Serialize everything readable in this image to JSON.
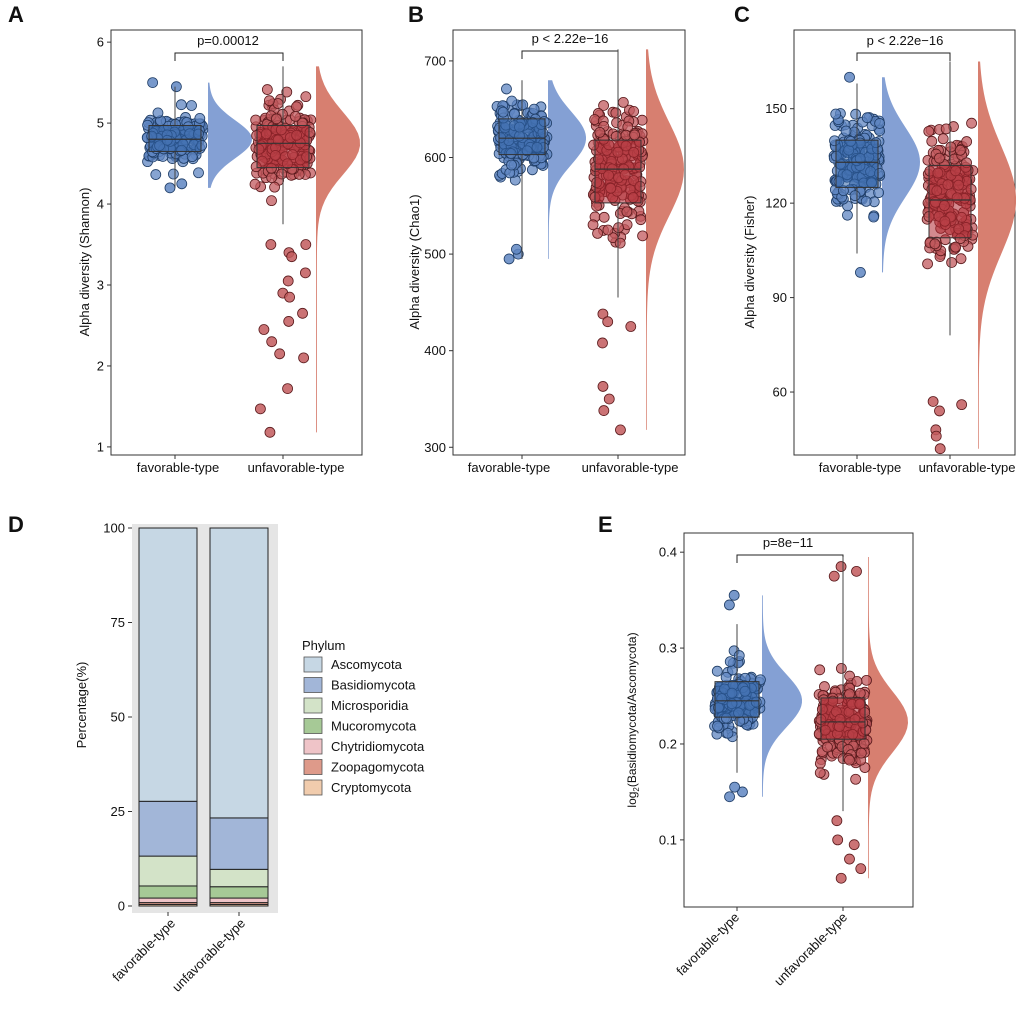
{
  "colors": {
    "favorable_fill": "#3f6fad",
    "favorable_dot": "#5f86c2",
    "favorable_box": "#2f62a6",
    "unfavorable_fill": "#a8383c",
    "unfavorable_dot": "#c25a5d",
    "unfavorable_box": "#b02a33",
    "fav_density": "#7d9bd2",
    "unfav_density": "#d57868",
    "panel_bg": "#e5e5e5",
    "Ascomycota": "#c6d7e4",
    "Basidiomycota": "#a2b6d8",
    "Microsporidia": "#d3e3c8",
    "Mucoromycota": "#a6c996",
    "Chytridiomycota": "#efc4c8",
    "Zoopagomycota": "#de9a8a",
    "Cryptomycota": "#f1ccad"
  },
  "chart_data": [
    {
      "panel": "A",
      "type": "scatter",
      "categories": [
        "favorable-type",
        "unfavorable-type"
      ],
      "ylabel": "Alpha diversity (Shannon)",
      "ylim": [
        0.9,
        6.15
      ],
      "yticks": [
        1,
        2,
        3,
        4,
        5,
        6
      ],
      "comparison": "p=0.00012",
      "series": [
        {
          "group": "favorable-type",
          "median": 4.8,
          "q1": 4.65,
          "q3": 4.97,
          "min": 4.2,
          "max": 5.45,
          "outliers": [
            4.2,
            4.25,
            5.45,
            5.5
          ]
        },
        {
          "group": "unfavorable-type",
          "median": 4.75,
          "q1": 4.45,
          "q3": 4.97,
          "min": 3.75,
          "max": 5.7,
          "outliers": [
            3.5,
            3.5,
            3.4,
            3.35,
            3.15,
            3.05,
            2.9,
            2.85,
            2.65,
            2.55,
            2.45,
            2.3,
            2.15,
            2.1,
            1.72,
            1.47,
            1.18
          ]
        }
      ]
    },
    {
      "panel": "B",
      "type": "scatter",
      "categories": [
        "favorable-type",
        "unfavorable-type"
      ],
      "ylabel": "Alpha diversity (Chao1)",
      "ylim": [
        292,
        732
      ],
      "yticks": [
        300,
        400,
        500,
        600,
        700
      ],
      "comparison": "p < 2.22e−16",
      "series": [
        {
          "group": "favorable-type",
          "median": 620,
          "q1": 603,
          "q3": 640,
          "min": 495,
          "max": 680,
          "outliers": [
            495,
            500,
            505
          ]
        },
        {
          "group": "unfavorable-type",
          "median": 588,
          "q1": 553,
          "q3": 618,
          "min": 455,
          "max": 712,
          "outliers": [
            438,
            430,
            425,
            408,
            363,
            350,
            338,
            318
          ]
        }
      ]
    },
    {
      "panel": "C",
      "type": "scatter",
      "categories": [
        "favorable-type",
        "unfavorable-type"
      ],
      "ylabel": "Alpha diversity (Fisher)",
      "ylim": [
        40,
        175
      ],
      "yticks": [
        60,
        90,
        120,
        150
      ],
      "comparison": "p < 2.22e−16",
      "series": [
        {
          "group": "favorable-type",
          "median": 133,
          "q1": 125,
          "q3": 140,
          "min": 104,
          "max": 158,
          "outliers": [
            98,
            160
          ]
        },
        {
          "group": "unfavorable-type",
          "median": 121,
          "q1": 109,
          "q3": 132,
          "min": 78,
          "max": 165,
          "outliers": [
            56,
            57,
            54,
            48,
            46,
            42
          ]
        }
      ]
    },
    {
      "panel": "D",
      "type": "bar",
      "stacked": true,
      "categories": [
        "favorable-type",
        "unfavorable-type"
      ],
      "ylabel": "Percentage(%)",
      "ylim": [
        0,
        100
      ],
      "yticks": [
        0,
        25,
        50,
        75,
        100
      ],
      "legend_title": "Phylum",
      "legend_position": "right",
      "series": [
        {
          "name": "Cryptomycota",
          "values": [
            0.4,
            0.4
          ]
        },
        {
          "name": "Zoopagomycota",
          "values": [
            0.5,
            0.5
          ]
        },
        {
          "name": "Chytridiomycota",
          "values": [
            1.2,
            1.2
          ]
        },
        {
          "name": "Mucoromycota",
          "values": [
            3.2,
            3.0
          ]
        },
        {
          "name": "Microsporidia",
          "values": [
            7.9,
            4.6
          ]
        },
        {
          "name": "Basidiomycota",
          "values": [
            14.5,
            13.6
          ]
        },
        {
          "name": "Ascomycota",
          "values": [
            72.3,
            76.7
          ]
        }
      ],
      "legend_order": [
        "Ascomycota",
        "Basidiomycota",
        "Microsporidia",
        "Mucoromycota",
        "Chytridiomycota",
        "Zoopagomycota",
        "Cryptomycota"
      ]
    },
    {
      "panel": "E",
      "type": "scatter",
      "categories": [
        "favorable-type",
        "unfavorable-type"
      ],
      "ylabel": "log2(Basidiomycota/Ascomycota)",
      "ylim": [
        0.03,
        0.42
      ],
      "yticks": [
        0.1,
        0.2,
        0.3,
        0.4
      ],
      "comparison": "p=8e−11",
      "series": [
        {
          "group": "favorable-type",
          "median": 0.245,
          "q1": 0.228,
          "q3": 0.265,
          "min": 0.17,
          "max": 0.325,
          "outliers": [
            0.15,
            0.145,
            0.155,
            0.345,
            0.355
          ]
        },
        {
          "group": "unfavorable-type",
          "median": 0.223,
          "q1": 0.205,
          "q3": 0.248,
          "min": 0.13,
          "max": 0.395,
          "outliers": [
            0.12,
            0.1,
            0.095,
            0.08,
            0.07,
            0.06,
            0.375,
            0.38,
            0.385
          ]
        }
      ]
    }
  ],
  "panels": {
    "A": {
      "label": "A",
      "ylabel": "Alpha diversity (Shannon)",
      "comparison": "p=0.00012",
      "ticks": [
        "1",
        "2",
        "3",
        "4",
        "5",
        "6"
      ],
      "xlabels": [
        "favorable-type",
        "unfavorable-type"
      ]
    },
    "B": {
      "label": "B",
      "ylabel": "Alpha diversity (Chao1)",
      "comparison": "p < 2.22e−16",
      "ticks": [
        "300",
        "400",
        "500",
        "600",
        "700"
      ],
      "xlabels": [
        "favorable-type",
        "unfavorable-type"
      ]
    },
    "C": {
      "label": "C",
      "ylabel": "Alpha diversity (Fisher)",
      "comparison": "p < 2.22e−16",
      "ticks": [
        "60",
        "90",
        "120",
        "150"
      ],
      "xlabels": [
        "favorable-type",
        "unfavorable-type"
      ]
    },
    "D": {
      "label": "D",
      "ylabel": "Percentage(%)",
      "legend_title": "Phylum",
      "ticks": [
        "0",
        "25",
        "50",
        "75",
        "100"
      ],
      "xlabels": [
        "favorable-type",
        "unfavorable-type"
      ],
      "legend": [
        "Ascomycota",
        "Basidiomycota",
        "Microsporidia",
        "Mucoromycota",
        "Chytridiomycota",
        "Zoopagomycota",
        "Cryptomycota"
      ]
    },
    "E": {
      "label": "E",
      "ylabel_log": "log",
      "ylabel_sub": "2",
      "ylabel_rest": "(Basidiomycota/Ascomycota)",
      "comparison": "p=8e−11",
      "ticks": [
        "0.1",
        "0.2",
        "0.3",
        "0.4"
      ],
      "xlabels": [
        "favorable-type",
        "unfavorable-type"
      ]
    }
  }
}
